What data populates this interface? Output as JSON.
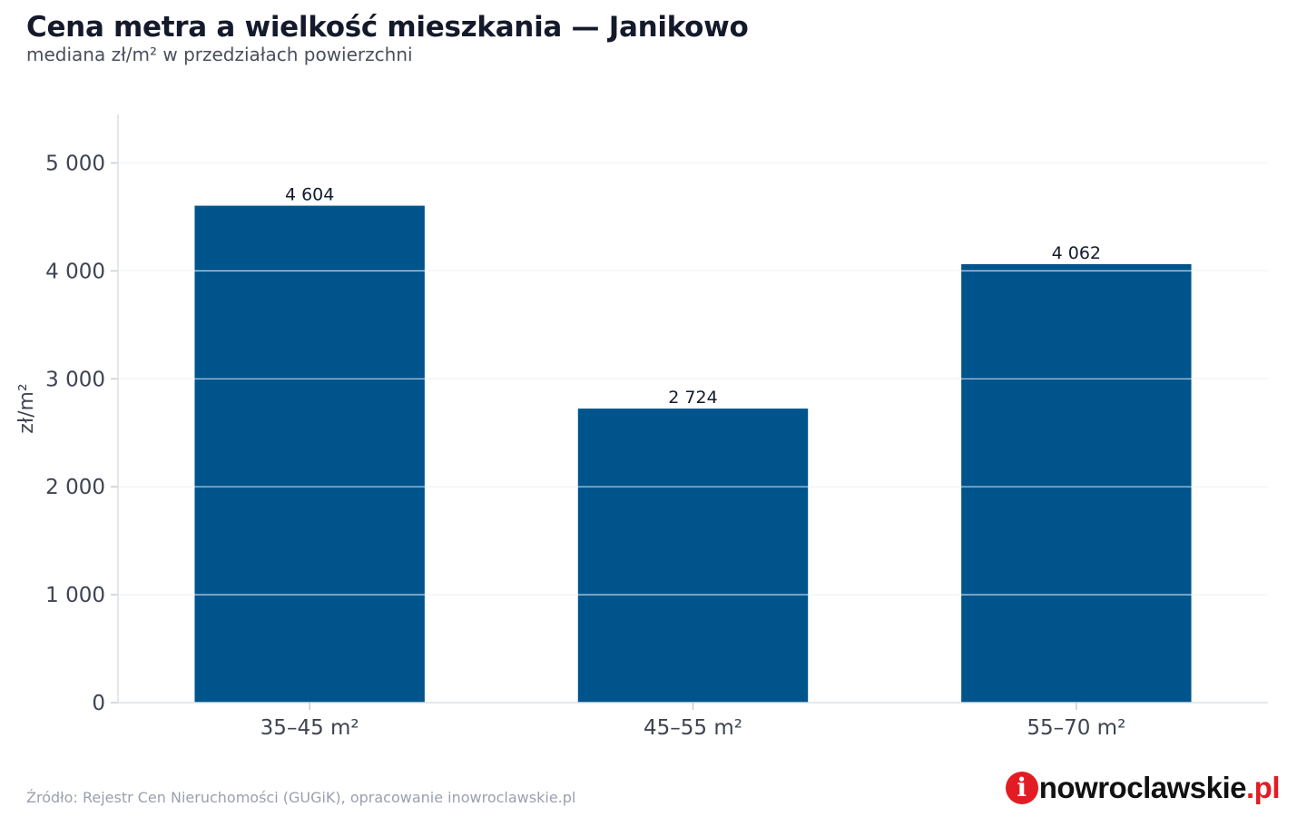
{
  "header": {
    "title": "Cena metra a wielkość mieszkania — Janikowo",
    "subtitle": "mediana zł/m² w przedziałach powierzchni"
  },
  "footer": {
    "source": "Źródło: Rejestr Cen Nieruchomości (GUGiK), opracowanie inowroclawskie.pl"
  },
  "logo": {
    "mark": "i",
    "text": "nowroclawskie",
    "tld": ".pl"
  },
  "colors": {
    "bar": "#00548c",
    "grid": "#e4e6ea",
    "axis_text": "#3f4452",
    "label_text": "#141a2b",
    "brand_red": "#e11d23"
  },
  "chart_data": {
    "type": "bar",
    "categories": [
      "35–45 m²",
      "45–55 m²",
      "55–70 m²"
    ],
    "values": [
      4604,
      2724,
      4062
    ],
    "value_labels": [
      "4 604",
      "2 724",
      "4 062"
    ],
    "ylabel": "zł/m²",
    "ylim": [
      0,
      5450
    ],
    "yticks": [
      0,
      1000,
      2000,
      3000,
      4000,
      5000
    ],
    "ytick_labels": [
      "0",
      "1 000",
      "2 000",
      "3 000",
      "4 000",
      "5 000"
    ],
    "grid": true,
    "legend": "none"
  }
}
